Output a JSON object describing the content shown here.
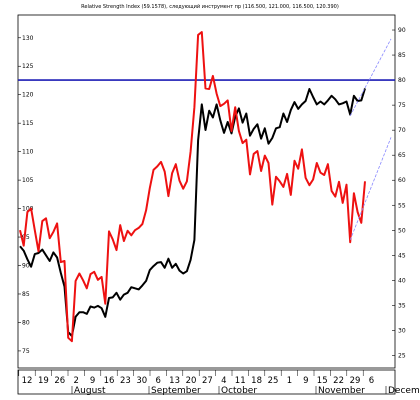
{
  "chart_data": {
    "type": "line",
    "title": "Relative Strength Index  (59.1578), следующий инструмент пр (116.500, 121.000, 116.500, 120.390)",
    "x_ticks": [
      "12",
      "19",
      "26",
      "2",
      "9",
      "16",
      "23",
      "30",
      "6",
      "13",
      "20",
      "27",
      "4",
      "11",
      "18",
      "25",
      "1",
      "9",
      "15",
      "22",
      "29",
      "6"
    ],
    "months": [
      "August",
      "September",
      "October",
      "November",
      "December"
    ],
    "left_axis": {
      "ticks": [
        75,
        80,
        85,
        90,
        95,
        100,
        105,
        110,
        115,
        120,
        125,
        130
      ],
      "range": [
        72,
        134
      ]
    },
    "right_axis": {
      "ticks": [
        25,
        30,
        35,
        40,
        45,
        50,
        55,
        60,
        65,
        70,
        75,
        80,
        85,
        90
      ],
      "range": [
        22.5,
        93
      ]
    },
    "reference_lines": [
      {
        "axis": "right",
        "value": 80,
        "color": "#1d1db5"
      }
    ],
    "series": [
      {
        "axis": "left",
        "color": "#000000",
        "values": [
          93.4,
          92.6,
          91.1,
          89.8,
          92.0,
          92.2,
          92.8,
          91.8,
          90.8,
          92.3,
          91.4,
          88.7,
          86.3,
          78.3,
          77.6,
          81.0,
          81.8,
          81.8,
          81.5,
          82.8,
          82.6,
          82.9,
          82.5,
          81.0,
          84.3,
          84.4,
          85.2,
          84.0,
          84.9,
          85.2,
          86.2,
          86.0,
          85.8,
          86.5,
          87.3,
          89.2,
          89.9,
          90.5,
          90.6,
          89.6,
          91.2,
          89.6,
          90.3,
          89.1,
          88.6,
          89.0,
          91.0,
          94.5,
          112.0,
          118.3,
          113.8,
          117.2,
          116.0,
          118.3,
          115.5,
          113.3,
          115.2,
          113.2,
          116.1,
          117.6,
          115.1,
          116.7,
          112.8,
          114.0,
          114.8,
          112.3,
          114.1,
          111.4,
          112.4,
          114.1,
          114.3,
          116.7,
          115.2,
          117.3,
          118.7,
          117.5,
          118.3,
          118.9,
          121.0,
          119.6,
          118.3,
          118.8,
          118.3,
          119.0,
          119.8,
          119.2,
          118.3,
          118.5,
          118.8,
          116.5,
          119.8,
          118.9,
          119.0,
          121.1
        ]
      },
      {
        "axis": "left",
        "color": "#ee1111",
        "values": [
          96.2,
          93.5,
          99.4,
          100.0,
          96.2,
          92.5,
          97.8,
          98.3,
          94.8,
          95.9,
          97.4,
          90.6,
          90.8,
          77.3,
          76.7,
          87.3,
          88.6,
          87.4,
          86.0,
          88.5,
          88.9,
          87.5,
          88.0,
          83.3,
          96.0,
          94.6,
          92.7,
          97.1,
          94.3,
          96.1,
          95.3,
          96.2,
          96.6,
          97.3,
          99.7,
          103.6,
          106.8,
          107.4,
          108.2,
          106.5,
          102.2,
          106.2,
          107.8,
          104.9,
          103.5,
          104.8,
          110.0,
          117.8,
          130.5,
          131.0,
          121.1,
          121.0,
          123.3,
          120.2,
          118.0,
          118.4,
          119.0,
          113.6,
          117.8,
          113.6,
          111.5,
          112.1,
          106.0,
          109.6,
          110.1,
          106.6,
          109.3,
          108.0,
          100.7,
          105.6,
          104.8,
          103.8,
          106.1,
          102.4,
          108.4,
          107.0,
          110.4,
          105.4,
          104.1,
          105.1,
          108.0,
          106.3,
          105.9,
          107.8,
          103.1,
          102.1,
          104.7,
          101.0,
          104.2,
          94.1,
          102.7,
          99.4,
          97.5,
          104.8
        ]
      },
      {
        "axis": "left",
        "color": "#8888ff",
        "dashed": true,
        "points": [
          [
            89,
            116.3
          ],
          [
            100,
            129.8
          ]
        ]
      },
      {
        "axis": "left",
        "color": "#8888ff",
        "dashed": true,
        "points": [
          [
            89,
            94.5
          ],
          [
            100,
            112.5
          ]
        ]
      }
    ]
  }
}
